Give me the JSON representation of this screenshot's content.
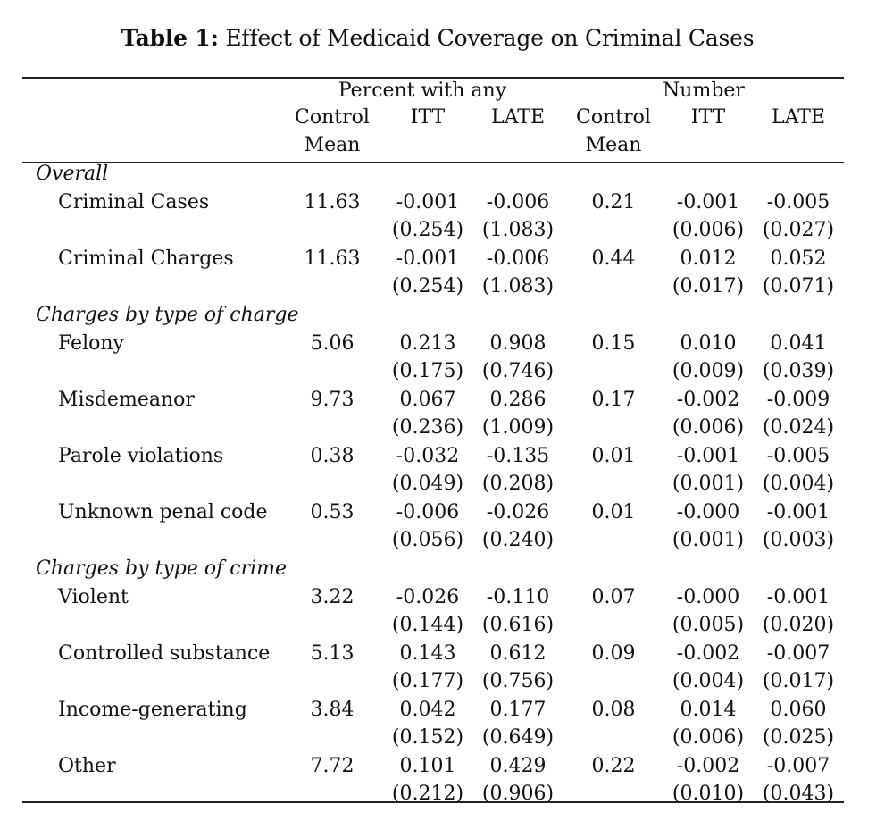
{
  "caption": {
    "label": "Table 1:",
    "text": "Effect of Medicaid Coverage on Criminal Cases"
  },
  "header": {
    "group_left": "Percent with any",
    "group_right": "Number",
    "columns": [
      {
        "line1": "Control",
        "line2": "Mean"
      },
      {
        "line1": "ITT",
        "line2": ""
      },
      {
        "line1": "LATE",
        "line2": ""
      },
      {
        "line1": "Control",
        "line2": "Mean"
      },
      {
        "line1": "ITT",
        "line2": ""
      },
      {
        "line1": "LATE",
        "line2": ""
      }
    ]
  },
  "sections": [
    {
      "title": "Overall",
      "rows": [
        {
          "label": "Criminal Cases",
          "est": [
            "11.63",
            "-0.001",
            "-0.006",
            "0.21",
            "-0.001",
            "-0.005"
          ],
          "se": [
            "",
            "(0.254)",
            "(1.083)",
            "",
            "(0.006)",
            "(0.027)"
          ]
        },
        {
          "label": "Criminal Charges",
          "est": [
            "11.63",
            "-0.001",
            "-0.006",
            "0.44",
            "0.012",
            "0.052"
          ],
          "se": [
            "",
            "(0.254)",
            "(1.083)",
            "",
            "(0.017)",
            "(0.071)"
          ]
        }
      ]
    },
    {
      "title": "Charges by type of charge",
      "rows": [
        {
          "label": "Felony",
          "est": [
            "5.06",
            "0.213",
            "0.908",
            "0.15",
            "0.010",
            "0.041"
          ],
          "se": [
            "",
            "(0.175)",
            "(0.746)",
            "",
            "(0.009)",
            "(0.039)"
          ]
        },
        {
          "label": "Misdemeanor",
          "est": [
            "9.73",
            "0.067",
            "0.286",
            "0.17",
            "-0.002",
            "-0.009"
          ],
          "se": [
            "",
            "(0.236)",
            "(1.009)",
            "",
            "(0.006)",
            "(0.024)"
          ]
        },
        {
          "label": "Parole violations",
          "est": [
            "0.38",
            "-0.032",
            "-0.135",
            "0.01",
            "-0.001",
            "-0.005"
          ],
          "se": [
            "",
            "(0.049)",
            "(0.208)",
            "",
            "(0.001)",
            "(0.004)"
          ]
        },
        {
          "label": "Unknown penal code",
          "est": [
            "0.53",
            "-0.006",
            "-0.026",
            "0.01",
            "-0.000",
            "-0.001"
          ],
          "se": [
            "",
            "(0.056)",
            "(0.240)",
            "",
            "(0.001)",
            "(0.003)"
          ]
        }
      ]
    },
    {
      "title": "Charges by type of crime",
      "rows": [
        {
          "label": "Violent",
          "est": [
            "3.22",
            "-0.026",
            "-0.110",
            "0.07",
            "-0.000",
            "-0.001"
          ],
          "se": [
            "",
            "(0.144)",
            "(0.616)",
            "",
            "(0.005)",
            "(0.020)"
          ]
        },
        {
          "label": "Controlled substance",
          "est": [
            "5.13",
            "0.143",
            "0.612",
            "0.09",
            "-0.002",
            "-0.007"
          ],
          "se": [
            "",
            "(0.177)",
            "(0.756)",
            "",
            "(0.004)",
            "(0.017)"
          ]
        },
        {
          "label": "Income-generating",
          "est": [
            "3.84",
            "0.042",
            "0.177",
            "0.08",
            "0.014",
            "0.060"
          ],
          "se": [
            "",
            "(0.152)",
            "(0.649)",
            "",
            "(0.006)",
            "(0.025)"
          ]
        },
        {
          "label": "Other",
          "est": [
            "7.72",
            "0.101",
            "0.429",
            "0.22",
            "-0.002",
            "-0.007"
          ],
          "se": [
            "",
            "(0.212)",
            "(0.906)",
            "",
            "(0.010)",
            "(0.043)"
          ]
        }
      ]
    }
  ]
}
